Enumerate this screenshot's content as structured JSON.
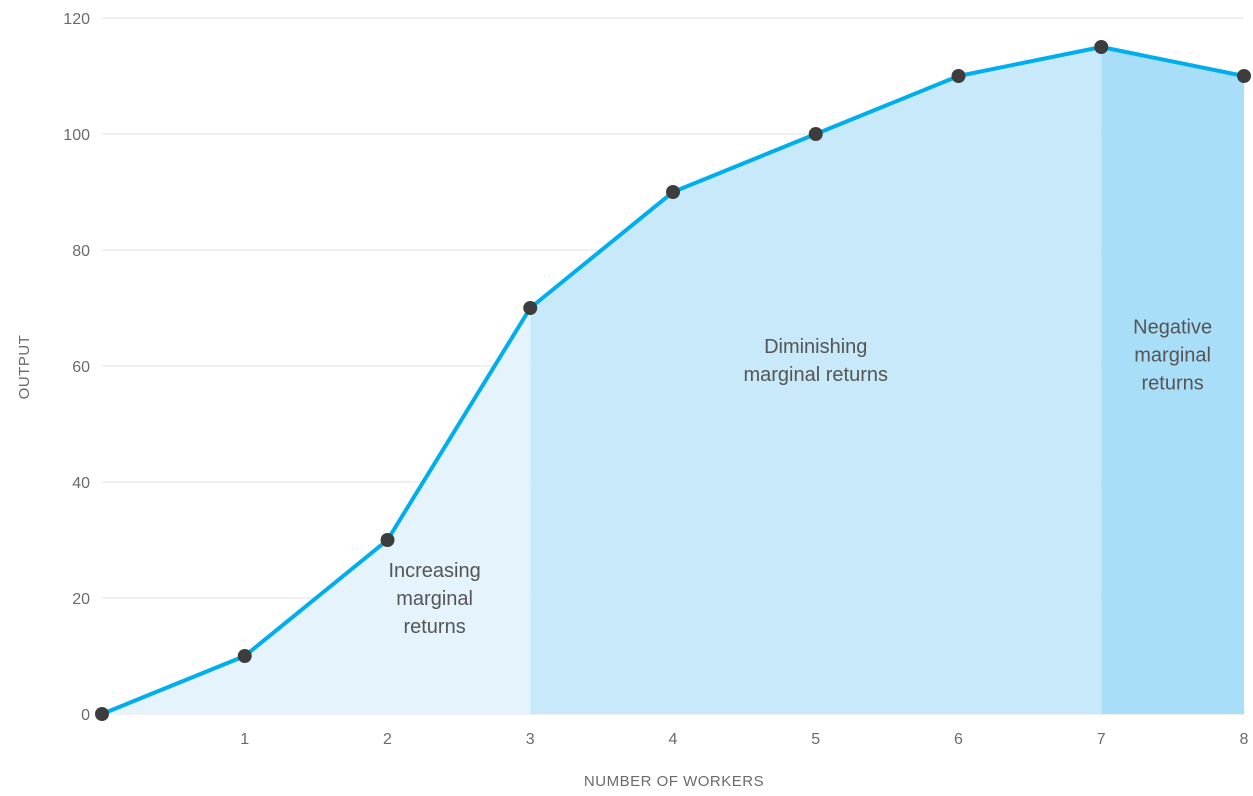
{
  "chart_data": {
    "type": "line",
    "title": "",
    "xlabel": "NUMBER OF WORKERS",
    "ylabel": "OUTPUT",
    "x": [
      0,
      1,
      2,
      3,
      4,
      5,
      6,
      7,
      8
    ],
    "series": [
      {
        "values": [
          0,
          10,
          30,
          70,
          90,
          100,
          110,
          115,
          110
        ]
      }
    ],
    "x_ticks": [
      "1",
      "2",
      "3",
      "4",
      "5",
      "6",
      "7",
      "8"
    ],
    "y_ticks": [
      "0",
      "20",
      "40",
      "60",
      "80",
      "100",
      "120"
    ],
    "xlim": [
      0,
      8
    ],
    "ylim": [
      0,
      120
    ],
    "grid": "horizontal",
    "regions": [
      {
        "label": [
          "Increasing",
          "marginal",
          "returns"
        ],
        "x_start": 0,
        "x_end": 3,
        "label_x": 2.33,
        "label_y": 20
      },
      {
        "label": [
          "Diminishing",
          "marginal returns"
        ],
        "x_start": 3,
        "x_end": 7,
        "label_x": 5,
        "label_y": 61
      },
      {
        "label": [
          "Negative",
          "marginal",
          "returns"
        ],
        "x_start": 7,
        "x_end": 8,
        "label_x": 7.5,
        "label_y": 62
      }
    ]
  },
  "colors": {
    "line": "#00aeef",
    "marker": "#3d3d3d",
    "grid": "#e0e0e0",
    "region_increasing": "#e4f3fc",
    "region_diminishing": "#c7e9f9",
    "region_negative": "#a9def8"
  }
}
